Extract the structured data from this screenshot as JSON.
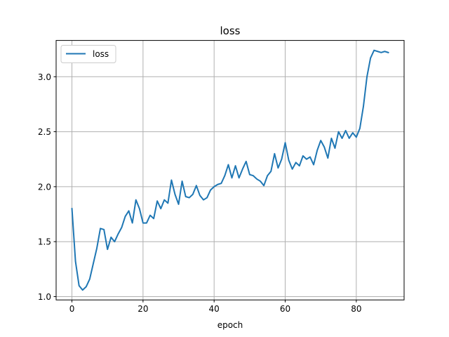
{
  "chart_data": {
    "type": "line",
    "title": "loss",
    "xlabel": "epoch",
    "ylabel": "",
    "xlim": [
      -4.45,
      93.45
    ],
    "ylim": [
      0.97,
      3.33
    ],
    "xticks": [
      0,
      20,
      40,
      60,
      80
    ],
    "yticks": [
      1.0,
      1.5,
      2.0,
      2.5,
      3.0
    ],
    "xtick_labels": [
      "0",
      "20",
      "40",
      "60",
      "80"
    ],
    "ytick_labels": [
      "1.0",
      "1.5",
      "2.0",
      "2.5",
      "3.0"
    ],
    "grid": true,
    "legend": {
      "position": "upper-left"
    },
    "colors": {
      "series": "#1f77b4",
      "grid": "#b0b0b0"
    },
    "series": [
      {
        "name": "loss",
        "x": [
          0,
          1,
          2,
          3,
          4,
          5,
          6,
          7,
          8,
          9,
          10,
          11,
          12,
          13,
          14,
          15,
          16,
          17,
          18,
          19,
          20,
          21,
          22,
          23,
          24,
          25,
          26,
          27,
          28,
          29,
          30,
          31,
          32,
          33,
          34,
          35,
          36,
          37,
          38,
          39,
          40,
          41,
          42,
          43,
          44,
          45,
          46,
          47,
          48,
          49,
          50,
          51,
          52,
          53,
          54,
          55,
          56,
          57,
          58,
          59,
          60,
          61,
          62,
          63,
          64,
          65,
          66,
          67,
          68,
          69,
          70,
          71,
          72,
          73,
          74,
          75,
          76,
          77,
          78,
          79,
          80,
          81,
          82,
          83,
          84,
          85,
          86,
          87,
          88,
          89
        ],
        "values": [
          1.8,
          1.32,
          1.1,
          1.06,
          1.09,
          1.16,
          1.3,
          1.44,
          1.62,
          1.61,
          1.43,
          1.54,
          1.5,
          1.57,
          1.63,
          1.73,
          1.78,
          1.67,
          1.88,
          1.8,
          1.67,
          1.67,
          1.74,
          1.71,
          1.87,
          1.8,
          1.88,
          1.85,
          2.06,
          1.93,
          1.84,
          2.05,
          1.91,
          1.9,
          1.93,
          2.01,
          1.92,
          1.88,
          1.9,
          1.97,
          2.0,
          2.02,
          2.03,
          2.1,
          2.2,
          2.08,
          2.19,
          2.08,
          2.16,
          2.23,
          2.11,
          2.1,
          2.07,
          2.05,
          2.01,
          2.1,
          2.14,
          2.3,
          2.17,
          2.25,
          2.4,
          2.24,
          2.16,
          2.22,
          2.19,
          2.28,
          2.25,
          2.27,
          2.2,
          2.33,
          2.42,
          2.36,
          2.26,
          2.44,
          2.35,
          2.5,
          2.44,
          2.51,
          2.44,
          2.49,
          2.45,
          2.53,
          2.73,
          3.0,
          3.17,
          3.24,
          3.23,
          3.22,
          3.23,
          3.22
        ]
      }
    ]
  }
}
